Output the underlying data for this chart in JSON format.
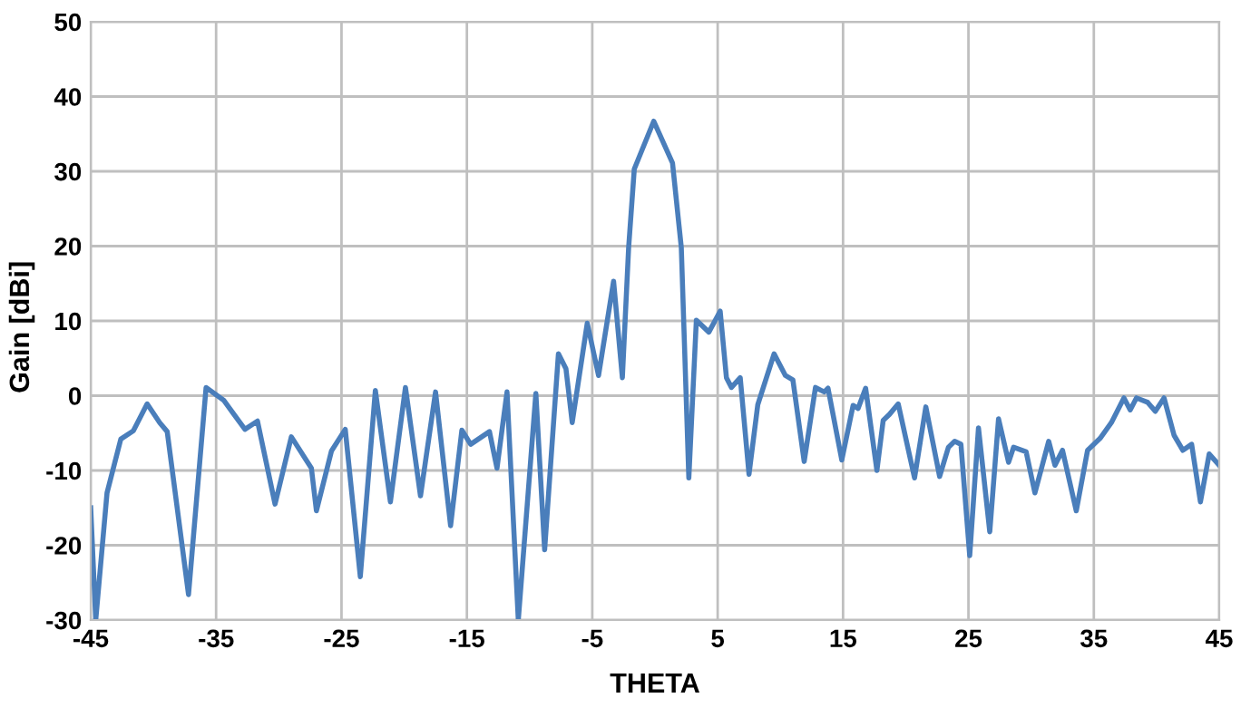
{
  "chart_data": {
    "type": "line",
    "xlabel": "THETA",
    "ylabel": "Gain [dBi]",
    "xlim": [
      -45,
      45
    ],
    "ylim": [
      -30,
      50
    ],
    "xticks": [
      -45,
      -35,
      -25,
      -15,
      -5,
      5,
      15,
      25,
      35,
      45
    ],
    "yticks": [
      -30,
      -20,
      -10,
      0,
      10,
      20,
      30,
      40,
      50
    ],
    "grid": true,
    "marker": "none",
    "line_style": "solid",
    "series": [
      {
        "color": "#4a7ebb",
        "x": [
          -45,
          -44.6,
          -43.7,
          -42.6,
          -41.6,
          -40.5,
          -39.5,
          -38.9,
          -37.2,
          -35.8,
          -34.4,
          -32.7,
          -31.7,
          -30.3,
          -29,
          -27.4,
          -27,
          -25.8,
          -24.7,
          -23.5,
          -22.3,
          -21.1,
          -19.9,
          -18.7,
          -17.5,
          -16.3,
          -15.4,
          -14.7,
          -13.2,
          -12.6,
          -11.8,
          -10.9,
          -9.5,
          -8.8,
          -7.7,
          -7.1,
          -6.6,
          -5.4,
          -4.5,
          -3.3,
          -2.6,
          -2.1,
          -1.65,
          -0.1,
          1.4,
          2.1,
          2.7,
          3.3,
          4.3,
          5.2,
          5.7,
          6.1,
          6.8,
          7.5,
          8.2,
          9.5,
          10.4,
          11,
          11.9,
          12.8,
          13.5,
          13.8,
          14.9,
          15.8,
          16.2,
          16.8,
          17.7,
          18.2,
          18.7,
          19.4,
          20.7,
          21.6,
          22.7,
          23.4,
          23.9,
          24.4,
          25.1,
          25.8,
          26.7,
          27.4,
          28.2,
          28.6,
          29.6,
          30.3,
          31.4,
          31.9,
          32.5,
          33.6,
          34.5,
          35.5,
          36.4,
          37.4,
          37.9,
          38.4,
          39.3,
          39.9,
          40.6,
          41.4,
          42.1,
          42.8,
          43.5,
          44.2,
          45
        ],
        "values": [
          -15,
          -30,
          -13,
          -5.8,
          -4.7,
          -1.1,
          -3.6,
          -4.8,
          -26.6,
          1.1,
          -0.6,
          -4.5,
          -3.4,
          -14.5,
          -5.5,
          -9.7,
          -15.4,
          -7.4,
          -4.5,
          -24.2,
          0.7,
          -14.2,
          1.1,
          -13.4,
          0.5,
          -17.4,
          -4.6,
          -6.5,
          -4.8,
          -9.7,
          0.5,
          -30,
          0.3,
          -20.6,
          5.6,
          3.6,
          -3.6,
          9.7,
          2.7,
          15.3,
          2.4,
          19.8,
          30.3,
          36.7,
          31.1,
          19.8,
          -11,
          10.1,
          8.5,
          11.3,
          2.4,
          1.1,
          2.4,
          -10.5,
          -1.2,
          5.6,
          2.7,
          2.1,
          -8.8,
          1.1,
          0.5,
          1,
          -8.6,
          -1.3,
          -1.7,
          1,
          -10,
          -3.3,
          -2.5,
          -1.1,
          -11,
          -1.5,
          -10.8,
          -6.9,
          -6.1,
          -6.5,
          -21.4,
          -4.3,
          -18.2,
          -3.1,
          -8.9,
          -6.9,
          -7.5,
          -13,
          -6.1,
          -9.3,
          -7.3,
          -15.4,
          -7.3,
          -5.7,
          -3.6,
          -0.3,
          -1.9,
          -0.3,
          -0.9,
          -2.1,
          -0.3,
          -5.3,
          -7.3,
          -6.5,
          -14.2,
          -7.8,
          -9.3
        ]
      }
    ]
  }
}
